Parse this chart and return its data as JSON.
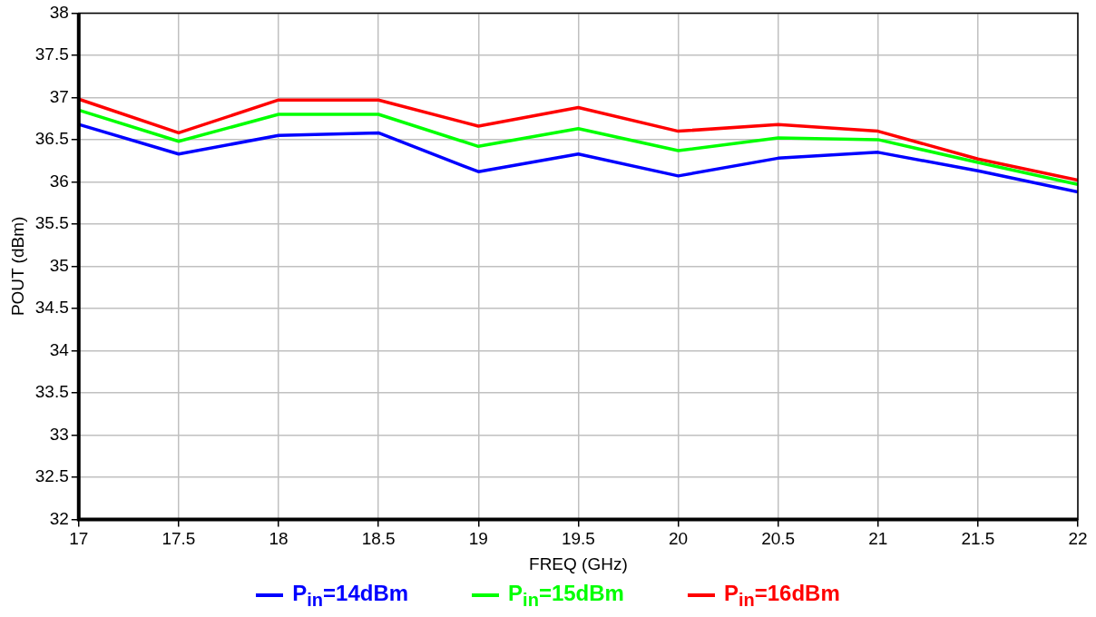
{
  "chart_data": {
    "type": "line",
    "xlabel": "FREQ (GHz)",
    "ylabel": "POUT (dBm)",
    "x": [
      17,
      17.5,
      18,
      18.5,
      19,
      19.5,
      20,
      20.5,
      21,
      21.5,
      22
    ],
    "xlim": [
      17,
      22
    ],
    "xticks": [
      17,
      17.5,
      18,
      18.5,
      19,
      19.5,
      20,
      20.5,
      21,
      21.5,
      22
    ],
    "ylim": [
      32,
      38
    ],
    "yticks": [
      32,
      32.5,
      33,
      33.5,
      34,
      34.5,
      35,
      35.5,
      36,
      36.5,
      37,
      37.5,
      38
    ],
    "grid": true,
    "legend": "bottom",
    "marker": "none",
    "line_style": "solid",
    "series": [
      {
        "name": "P$_{in}$=14dBm",
        "color": "#0000ff",
        "values": [
          36.68,
          36.33,
          36.55,
          36.58,
          36.12,
          36.33,
          36.07,
          36.28,
          36.35,
          36.13,
          35.88
        ]
      },
      {
        "name": "P$_{in}$=15dBm",
        "color": "#00ff00",
        "values": [
          36.85,
          36.48,
          36.8,
          36.8,
          36.42,
          36.63,
          36.37,
          36.52,
          36.5,
          36.23,
          35.97
        ]
      },
      {
        "name": "P$_{in}$=16dBm",
        "color": "#ff0000",
        "values": [
          36.98,
          36.58,
          36.97,
          36.97,
          36.66,
          36.88,
          36.6,
          36.68,
          36.6,
          36.27,
          36.02
        ]
      }
    ]
  }
}
